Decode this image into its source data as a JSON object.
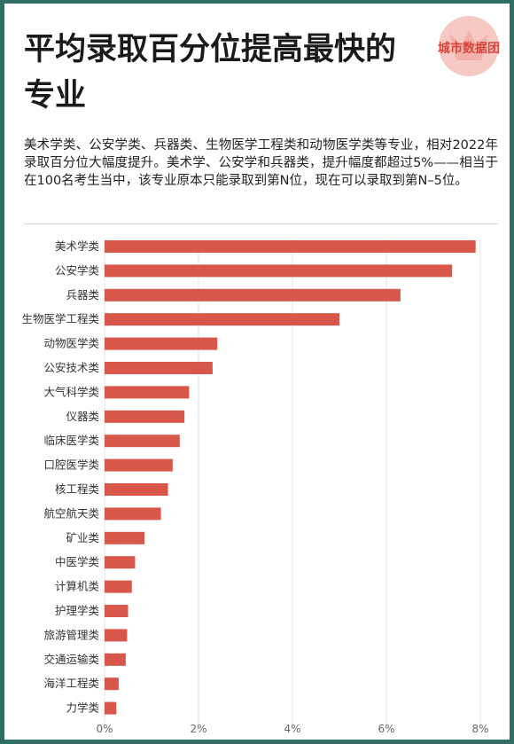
{
  "title": "平均录取百分位提高最快的专业",
  "logo_text": "城市数据团",
  "description": "美术学类、公安学类、兵器类、生物医学工程类和动物医学类等专业，相对2022年录取百分位大幅度提升。美术学、公安学和兵器类，提升幅度都超过5%——相当于在100名考生当中，该专业原本只能录取到第N位，现在可以录取到第N–5位。",
  "colors": {
    "bar": "#d9574a",
    "grid": "#e4e4e4",
    "border": "#2f6f63"
  },
  "chart_data": {
    "type": "bar",
    "orientation": "horizontal",
    "categories": [
      "美术学类",
      "公安学类",
      "兵器类",
      "生物医学工程类",
      "动物医学类",
      "公安技术类",
      "大气科学类",
      "仪器类",
      "临床医学类",
      "口腔医学类",
      "核工程类",
      "航空航天类",
      "矿业类",
      "中医学类",
      "计算机类",
      "护理学类",
      "旅游管理类",
      "交通运输类",
      "海洋工程类",
      "力学类"
    ],
    "values": [
      7.9,
      7.4,
      6.3,
      5.0,
      2.4,
      2.3,
      1.8,
      1.7,
      1.6,
      1.45,
      1.35,
      1.2,
      0.85,
      0.65,
      0.58,
      0.5,
      0.48,
      0.45,
      0.3,
      0.25
    ],
    "xlim": [
      0,
      8
    ],
    "xticks": [
      "0%",
      "2%",
      "4%",
      "6%",
      "8%"
    ],
    "grid": true,
    "title": "",
    "xlabel": "",
    "ylabel": ""
  }
}
